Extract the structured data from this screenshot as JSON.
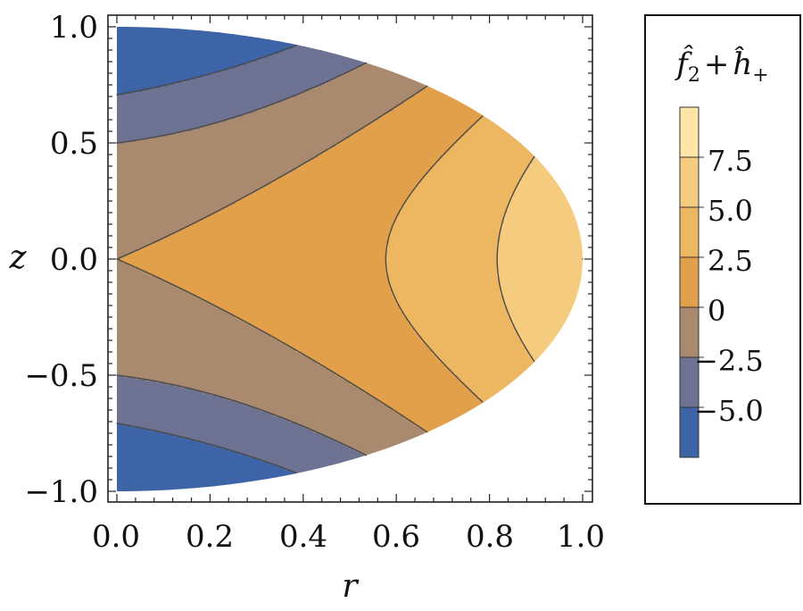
{
  "chart_data": {
    "type": "contour",
    "title": "",
    "xlabel": "r",
    "ylabel": "z",
    "xlim": [
      0.0,
      1.0
    ],
    "ylim": [
      -1.0,
      1.0
    ],
    "x_ticks": [
      "0.0",
      "0.2",
      "0.4",
      "0.6",
      "0.8",
      "1.0"
    ],
    "y_ticks": [
      "1.0",
      "0.5",
      "0.0",
      "−0.5",
      "−1.0"
    ],
    "x_tick_values": [
      0.0,
      0.2,
      0.4,
      0.6,
      0.8,
      1.0
    ],
    "y_tick_values": [
      1.0,
      0.5,
      0.0,
      -0.5,
      -1.0
    ],
    "domain": "half-disk r^2 + z^2 <= 1, r >= 0",
    "field_description": "f2 + h+ ; approx 7.5 r^2 - 10 z^2 / (1 + r)",
    "legend": {
      "title": "f̂₂ + ĥ₊",
      "title_main": "f̂",
      "title_sub": "2",
      "title_plus": "+",
      "title_main2": "ĥ",
      "title_sup": "+",
      "tick_labels": [
        "7.5",
        "5.0",
        "2.5",
        "0",
        "−2.5",
        "−5.0"
      ]
    },
    "levels": [
      -7.5,
      -5.0,
      -2.5,
      0.0,
      2.5,
      5.0,
      7.5,
      10.0
    ],
    "bands": [
      {
        "min": -7.5,
        "max": -5.0,
        "color": "#3c64a6"
      },
      {
        "min": -5.0,
        "max": -2.5,
        "color": "#6e7293"
      },
      {
        "min": -2.5,
        "max": 0.0,
        "color": "#a98a6e"
      },
      {
        "min": 0.0,
        "max": 2.5,
        "color": "#e2a04a"
      },
      {
        "min": 2.5,
        "max": 5.0,
        "color": "#edb661"
      },
      {
        "min": 5.0,
        "max": 7.5,
        "color": "#f5cc7f"
      },
      {
        "min": 7.5,
        "max": 10.0,
        "color": "#fde6a6"
      }
    ],
    "contour_line_color": "#4a4a4a"
  }
}
